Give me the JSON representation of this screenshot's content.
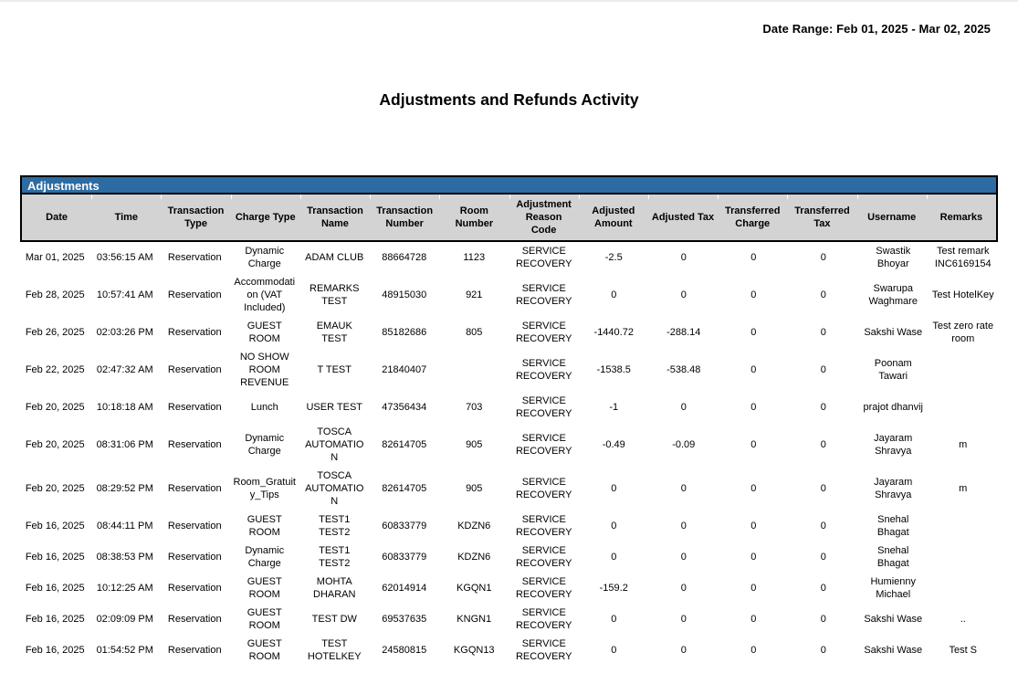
{
  "report": {
    "date_range_label": "Date Range: Feb 01, 2025 - Mar 02, 2025",
    "title": "Adjustments and Refunds Activity"
  },
  "colors": {
    "section_bar_blue": "#2d6ca3",
    "header_row_gray": "#d3d3d3",
    "border_black": "#000000"
  },
  "table": {
    "section_title": "Adjustments",
    "columns": [
      "Date",
      "Time",
      "Transaction Type",
      "Charge Type",
      "Transaction Name",
      "Transaction Number",
      "Room Number",
      "Adjustment Reason Code",
      "Adjusted Amount",
      "Adjusted Tax",
      "Transferred Charge",
      "Transferred Tax",
      "Username",
      "Remarks"
    ],
    "rows": [
      [
        "Mar 01, 2025",
        "03:56:15 AM",
        "Reservation",
        "Dynamic Charge",
        "ADAM CLUB",
        "88664728",
        "1123",
        "SERVICE RECOVERY",
        "-2.5",
        "0",
        "0",
        "0",
        "Swastik Bhoyar",
        "Test remark INC6169154"
      ],
      [
        "Feb 28, 2025",
        "10:57:41 AM",
        "Reservation",
        "Accommodation (VAT Included)",
        "REMARKS TEST",
        "48915030",
        "921",
        "SERVICE RECOVERY",
        "0",
        "0",
        "0",
        "0",
        "Swarupa Waghmare",
        "Test HotelKey"
      ],
      [
        "Feb 26, 2025",
        "02:03:26 PM",
        "Reservation",
        "GUEST ROOM",
        "EMAUK TEST",
        "85182686",
        "805",
        "SERVICE RECOVERY",
        "-1440.72",
        "-288.14",
        "0",
        "0",
        "Sakshi Wase",
        "Test zero rate room"
      ],
      [
        "Feb 22, 2025",
        "02:47:32 AM",
        "Reservation",
        "NO SHOW ROOM REVENUE",
        "T TEST",
        "21840407",
        "",
        "SERVICE RECOVERY",
        "-1538.5",
        "-538.48",
        "0",
        "0",
        "Poonam Tawari",
        ""
      ],
      [
        "Feb 20, 2025",
        "10:18:18 AM",
        "Reservation",
        "Lunch",
        "USER TEST",
        "47356434",
        "703",
        "SERVICE RECOVERY",
        "-1",
        "0",
        "0",
        "0",
        "prajot dhanvij",
        ""
      ],
      [
        "Feb 20, 2025",
        "08:31:06 PM",
        "Reservation",
        "Dynamic Charge",
        "TOSCA AUTOMATION",
        "82614705",
        "905",
        "SERVICE RECOVERY",
        "-0.49",
        "-0.09",
        "0",
        "0",
        "Jayaram Shravya",
        "m"
      ],
      [
        "Feb 20, 2025",
        "08:29:52 PM",
        "Reservation",
        "Room_Gratuity_Tips",
        "TOSCA AUTOMATION",
        "82614705",
        "905",
        "SERVICE RECOVERY",
        "0",
        "0",
        "0",
        "0",
        "Jayaram Shravya",
        "m"
      ],
      [
        "Feb 16, 2025",
        "08:44:11 PM",
        "Reservation",
        "GUEST ROOM",
        "TEST1 TEST2",
        "60833779",
        "KDZN6",
        "SERVICE RECOVERY",
        "0",
        "0",
        "0",
        "0",
        "Snehal Bhagat",
        ""
      ],
      [
        "Feb 16, 2025",
        "08:38:53 PM",
        "Reservation",
        "Dynamic Charge",
        "TEST1 TEST2",
        "60833779",
        "KDZN6",
        "SERVICE RECOVERY",
        "0",
        "0",
        "0",
        "0",
        "Snehal Bhagat",
        ""
      ],
      [
        "Feb 16, 2025",
        "10:12:25 AM",
        "Reservation",
        "GUEST ROOM",
        "MOHTA DHARAN",
        "62014914",
        "KGQN1",
        "SERVICE RECOVERY",
        "-159.2",
        "0",
        "0",
        "0",
        "Humienny Michael",
        ""
      ],
      [
        "Feb 16, 2025",
        "02:09:09 PM",
        "Reservation",
        "GUEST ROOM",
        "TEST DW",
        "69537635",
        "KNGN1",
        "SERVICE RECOVERY",
        "0",
        "0",
        "0",
        "0",
        "Sakshi Wase",
        ".."
      ],
      [
        "Feb 16, 2025",
        "01:54:52 PM",
        "Reservation",
        "GUEST ROOM",
        "TEST HOTELKEY",
        "24580815",
        "KGQN13",
        "SERVICE RECOVERY",
        "0",
        "0",
        "0",
        "0",
        "Sakshi Wase",
        "Test S"
      ]
    ]
  }
}
